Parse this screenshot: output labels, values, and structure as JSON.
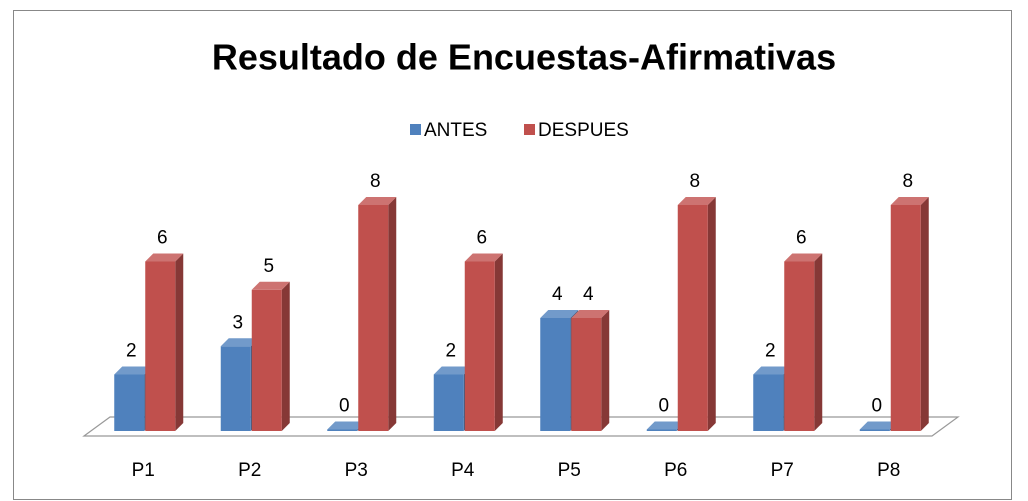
{
  "chart_data": {
    "type": "bar3d",
    "title": "Resultado de Encuestas-Afirmativas",
    "categories": [
      "P1",
      "P2",
      "P3",
      "P4",
      "P5",
      "P6",
      "P7",
      "P8"
    ],
    "series": [
      {
        "name": "ANTES",
        "color": "#4f81bd",
        "values": [
          2,
          3,
          0,
          2,
          4,
          0,
          2,
          0
        ]
      },
      {
        "name": "DESPUES",
        "color": "#c0504d",
        "values": [
          6,
          5,
          8,
          6,
          4,
          8,
          6,
          8
        ]
      }
    ],
    "legend": "top"
  }
}
